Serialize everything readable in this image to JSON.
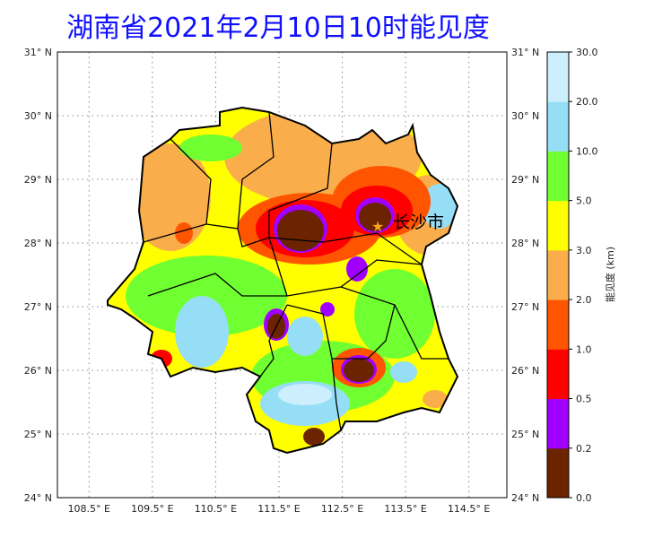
{
  "title": "湖南省2021年2月10日10时能见度",
  "map": {
    "lat_ticks": [
      "24° N",
      "25° N",
      "26° N",
      "27° N",
      "28° N",
      "29° N",
      "30° N",
      "31° N"
    ],
    "lon_ticks": [
      "108.5° E",
      "109.5° E",
      "110.5° E",
      "111.5° E",
      "112.5° E",
      "113.5° E",
      "114.5° E"
    ],
    "lat_range": [
      24,
      31
    ],
    "lon_range": [
      108,
      115.1
    ],
    "city_label": "长沙市",
    "city_marker": "star-icon",
    "grid": true
  },
  "colorbar": {
    "label": "能见度 (km)",
    "ticks": [
      "0.0",
      "0.2",
      "0.5",
      "1.0",
      "2.0",
      "3.0",
      "5.0",
      "10.0",
      "20.0",
      "30.0"
    ],
    "colors": [
      "#6b2300",
      "#a000ff",
      "#ff0000",
      "#ff5500",
      "#f9ae4b",
      "#ffff00",
      "#70ff30",
      "#96def5",
      "#cdeefc"
    ]
  }
}
